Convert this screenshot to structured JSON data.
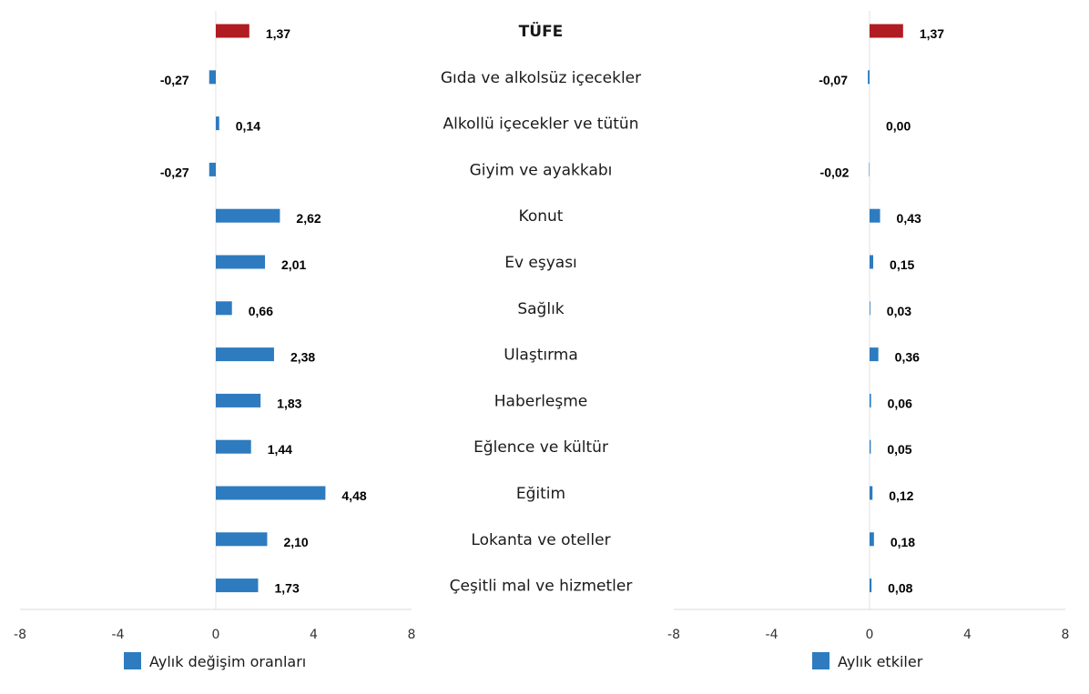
{
  "chart_data": [
    {
      "type": "bar",
      "orientation": "horizontal",
      "categories": [
        "TÜFE",
        "Gıda ve alkolsüz içecekler",
        "Alkollü içecekler ve tütün",
        "Giyim ve ayakkabı",
        "Konut",
        "Ev eşyası",
        "Sağlık",
        "Ulaştırma",
        "Haberleşme",
        "Eğlence ve kültür",
        "Eğitim",
        "Lokanta ve oteller",
        "Çeşitli mal ve hizmetler"
      ],
      "series": [
        {
          "name": "Aylık değişim oranları",
          "values": [
            1.37,
            -0.27,
            0.14,
            -0.27,
            2.62,
            2.01,
            0.66,
            2.38,
            1.83,
            1.44,
            4.48,
            2.1,
            1.73
          ]
        }
      ],
      "value_labels": [
        "1,37",
        "-0,27",
        "0,14",
        "-0,27",
        "2,62",
        "2,01",
        "0,66",
        "2,38",
        "1,83",
        "1,44",
        "4,48",
        "2,10",
        "1,73"
      ],
      "xlim": [
        -8,
        8
      ],
      "xticks": [
        "-8",
        "-4",
        "0",
        "4",
        "8"
      ],
      "highlight_index": 0,
      "colors": {
        "bar": "#2e7bbf",
        "highlight": "#b01c22"
      },
      "grid": false,
      "legend_position": "bottom"
    },
    {
      "type": "bar",
      "orientation": "horizontal",
      "categories": [
        "TÜFE",
        "Gıda ve alkolsüz içecekler",
        "Alkollü içecekler ve tütün",
        "Giyim ve ayakkabı",
        "Konut",
        "Ev eşyası",
        "Sağlık",
        "Ulaştırma",
        "Haberleşme",
        "Eğlence ve kültür",
        "Eğitim",
        "Lokanta ve oteller",
        "Çeşitli mal ve hizmetler"
      ],
      "series": [
        {
          "name": "Aylık etkiler",
          "values": [
            1.37,
            -0.07,
            0.0,
            -0.02,
            0.43,
            0.15,
            0.03,
            0.36,
            0.06,
            0.05,
            0.12,
            0.18,
            0.08
          ]
        }
      ],
      "value_labels": [
        "1,37",
        "-0,07",
        "0,00",
        "-0,02",
        "0,43",
        "0,15",
        "0,03",
        "0,36",
        "0,06",
        "0,05",
        "0,12",
        "0,18",
        "0,08"
      ],
      "xlim": [
        -8,
        8
      ],
      "xticks": [
        "-8",
        "-4",
        "0",
        "4",
        "8"
      ],
      "highlight_index": 0,
      "colors": {
        "bar": "#2e7bbf",
        "highlight": "#b01c22"
      },
      "grid": false,
      "legend_position": "bottom"
    }
  ]
}
